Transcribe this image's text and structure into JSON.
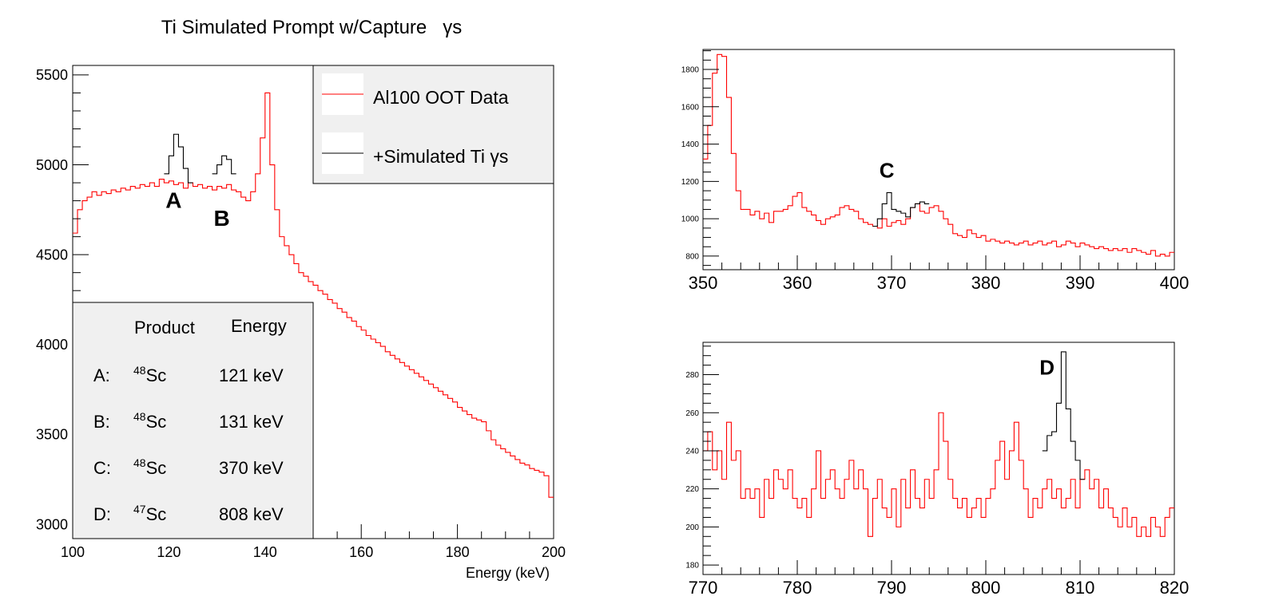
{
  "chart_data": [
    {
      "type": "line",
      "style": "histogram",
      "title": "Ti Simulated Prompt w/Capture   γs",
      "xlabel": "Energy (keV)",
      "ylabel": "",
      "xlim": [
        100,
        200
      ],
      "ylim": [
        2920,
        5553
      ],
      "xticks": [
        100,
        120,
        140,
        160,
        180,
        200
      ],
      "yticks": [
        3000,
        3500,
        4000,
        4500,
        5000,
        5500
      ],
      "legend": {
        "placement": "top-right",
        "entries": [
          {
            "label": "Al100 OOT Data",
            "color": "#ff0000"
          },
          {
            "label": "+Simulated Ti γs",
            "color": "#000000"
          }
        ]
      },
      "table": {
        "headers": [
          "",
          "Product",
          "Energy"
        ],
        "rows": [
          {
            "label": "A:",
            "mass": "48",
            "element": "Sc",
            "energy": "121 keV"
          },
          {
            "label": "B:",
            "mass": "48",
            "element": "Sc",
            "energy": "131 keV"
          },
          {
            "label": "C:",
            "mass": "48",
            "element": "Sc",
            "energy": "370 keV"
          },
          {
            "label": "D:",
            "mass": "47",
            "element": "Sc",
            "energy": "808 keV"
          }
        ]
      },
      "annotations": [
        {
          "text": "A",
          "x": 121,
          "y": 4760
        },
        {
          "text": "B",
          "x": 131,
          "y": 4660
        }
      ],
      "series": [
        {
          "name": "Al100 OOT Data",
          "color": "#ff0000",
          "x0": 100,
          "bin": 1,
          "values": [
            4620,
            4750,
            4800,
            4820,
            4850,
            4830,
            4850,
            4840,
            4860,
            4850,
            4870,
            4860,
            4880,
            4870,
            4890,
            4880,
            4900,
            4880,
            4920,
            4900,
            4910,
            4890,
            4900,
            4870,
            4900,
            4880,
            4890,
            4870,
            4880,
            4860,
            4880,
            4870,
            4890,
            4860,
            4850,
            4820,
            4800,
            4850,
            4950,
            5150,
            5400,
            5000,
            4750,
            4600,
            4550,
            4500,
            4450,
            4400,
            4380,
            4350,
            4330,
            4300,
            4280,
            4250,
            4230,
            4200,
            4180,
            4150,
            4130,
            4100,
            4080,
            4050,
            4030,
            4010,
            3990,
            3960,
            3940,
            3920,
            3900,
            3880,
            3860,
            3840,
            3820,
            3800,
            3780,
            3760,
            3740,
            3720,
            3700,
            3680,
            3650,
            3630,
            3610,
            3590,
            3580,
            3570,
            3520,
            3470,
            3440,
            3420,
            3400,
            3380,
            3360,
            3340,
            3330,
            3310,
            3300,
            3290,
            3270,
            3150
          ]
        },
        {
          "name": "+Simulated Ti γs",
          "color": "#000000",
          "segments": [
            {
              "x0": 119,
              "bin": 1,
              "values": [
                4950,
                5050,
                5170,
                5100,
                4980,
                4900
              ]
            },
            {
              "x0": 129,
              "bin": 1,
              "values": [
                4950,
                5000,
                5050,
                5030,
                4950
              ]
            }
          ]
        }
      ]
    },
    {
      "type": "line",
      "style": "histogram",
      "xlim": [
        350,
        400
      ],
      "ylim": [
        727,
        1907
      ],
      "xticks": [
        350,
        360,
        370,
        380,
        390,
        400
      ],
      "yticks": [
        800,
        1000,
        1200,
        1400,
        1600,
        1800
      ],
      "annotations": [
        {
          "text": "C",
          "x": 369.5,
          "y": 1220
        }
      ],
      "series": [
        {
          "color": "#ff0000",
          "x0": 350,
          "bin": 0.5,
          "values": [
            1320,
            1500,
            1780,
            1880,
            1870,
            1650,
            1350,
            1150,
            1050,
            1050,
            1020,
            1040,
            1000,
            1030,
            980,
            1040,
            1040,
            1050,
            1070,
            1120,
            1140,
            1060,
            1040,
            1020,
            990,
            970,
            1000,
            1010,
            1020,
            1060,
            1070,
            1050,
            1040,
            1000,
            980,
            970,
            960,
            950,
            1000,
            960,
            980,
            990,
            970,
            1000,
            1060,
            1080,
            1040,
            1030,
            1060,
            1070,
            1040,
            1000,
            970,
            920,
            910,
            900,
            940,
            920,
            900,
            910,
            880,
            890,
            880,
            870,
            880,
            870,
            860,
            870,
            880,
            860,
            870,
            880,
            860,
            870,
            880,
            850,
            860,
            880,
            870,
            850,
            870,
            860,
            850,
            840,
            850,
            840,
            830,
            840,
            830,
            840,
            820,
            840,
            830,
            820,
            810,
            830,
            800,
            810,
            800,
            820
          ]
        },
        {
          "color": "#000000",
          "segments": [
            {
              "x0": 368,
              "bin": 0.5,
              "values": [
                960,
                1000,
                1080,
                1140,
                1050,
                1040,
                1030,
                1010,
                1060,
                1080,
                1090,
                1080
              ]
            }
          ]
        }
      ]
    },
    {
      "type": "line",
      "style": "histogram",
      "xlim": [
        770,
        820
      ],
      "ylim": [
        175,
        297
      ],
      "xticks": [
        770,
        780,
        790,
        800,
        810,
        820
      ],
      "yticks": [
        180,
        200,
        220,
        240,
        260,
        280
      ],
      "annotations": [
        {
          "text": "D",
          "x": 806.5,
          "y": 280
        }
      ],
      "series": [
        {
          "color": "#ff0000",
          "x0": 770,
          "bin": 0.5,
          "values": [
            240,
            250,
            230,
            240,
            225,
            255,
            235,
            240,
            215,
            220,
            215,
            220,
            205,
            225,
            215,
            230,
            225,
            220,
            230,
            215,
            210,
            215,
            205,
            220,
            240,
            215,
            225,
            230,
            220,
            215,
            225,
            235,
            220,
            230,
            220,
            195,
            215,
            225,
            210,
            205,
            220,
            200,
            225,
            210,
            230,
            215,
            210,
            225,
            215,
            230,
            260,
            245,
            225,
            215,
            210,
            215,
            205,
            210,
            215,
            205,
            215,
            220,
            235,
            245,
            225,
            240,
            255,
            235,
            220,
            205,
            215,
            210,
            220,
            225,
            215,
            220,
            210,
            215,
            225,
            210,
            225,
            230,
            220,
            225,
            210,
            220,
            210,
            205,
            200,
            210,
            200,
            205,
            195,
            200,
            195,
            205,
            200,
            195,
            205,
            210
          ]
        },
        {
          "color": "#000000",
          "segments": [
            {
              "x0": 806,
              "bin": 0.5,
              "values": [
                240,
                248,
                250,
                265,
                292,
                262,
                245,
                235,
                225
              ]
            }
          ]
        }
      ]
    }
  ]
}
